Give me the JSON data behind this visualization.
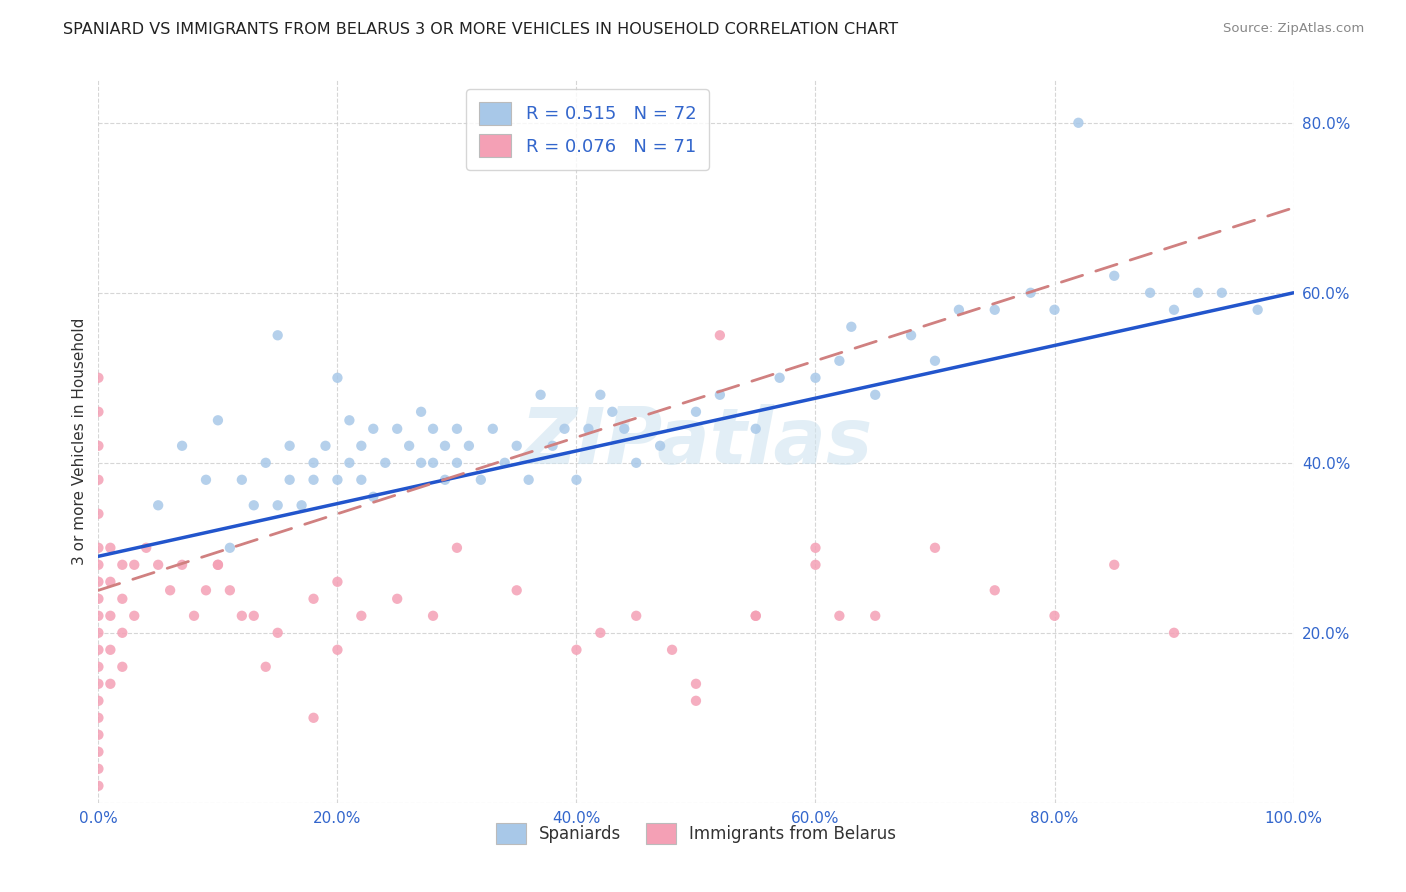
{
  "title": "SPANIARD VS IMMIGRANTS FROM BELARUS 3 OR MORE VEHICLES IN HOUSEHOLD CORRELATION CHART",
  "source": "Source: ZipAtlas.com",
  "ylabel": "3 or more Vehicles in Household",
  "legend_label1": "Spaniards",
  "legend_label2": "Immigrants from Belarus",
  "R1": 0.515,
  "N1": 72,
  "R2": 0.076,
  "N2": 71,
  "color1": "#a8c8e8",
  "color2": "#f4a0b5",
  "line_color1": "#2255cc",
  "line_color2": "#d08080",
  "watermark": "ZIPatlas",
  "xlim": [
    0.0,
    1.0
  ],
  "ylim": [
    0.0,
    0.85
  ],
  "xticks": [
    0.0,
    0.2,
    0.4,
    0.6,
    0.8,
    1.0
  ],
  "yticks": [
    0.0,
    0.2,
    0.4,
    0.6,
    0.8
  ],
  "xticklabels": [
    "0.0%",
    "20.0%",
    "40.0%",
    "60.0%",
    "80.0%",
    "100.0%"
  ],
  "yticklabels": [
    "",
    "20.0%",
    "40.0%",
    "60.0%",
    "80.0%"
  ],
  "spaniards_x": [
    0.05,
    0.07,
    0.09,
    0.1,
    0.11,
    0.12,
    0.13,
    0.14,
    0.15,
    0.15,
    0.16,
    0.16,
    0.17,
    0.18,
    0.18,
    0.19,
    0.2,
    0.2,
    0.21,
    0.21,
    0.22,
    0.22,
    0.23,
    0.23,
    0.24,
    0.25,
    0.26,
    0.27,
    0.27,
    0.28,
    0.28,
    0.29,
    0.29,
    0.3,
    0.3,
    0.31,
    0.32,
    0.33,
    0.34,
    0.35,
    0.36,
    0.37,
    0.38,
    0.39,
    0.4,
    0.41,
    0.42,
    0.43,
    0.44,
    0.45,
    0.47,
    0.5,
    0.52,
    0.55,
    0.57,
    0.6,
    0.62,
    0.63,
    0.65,
    0.68,
    0.7,
    0.72,
    0.75,
    0.78,
    0.8,
    0.82,
    0.85,
    0.88,
    0.9,
    0.92,
    0.94,
    0.97
  ],
  "spaniards_y": [
    0.35,
    0.42,
    0.38,
    0.45,
    0.3,
    0.38,
    0.35,
    0.4,
    0.35,
    0.55,
    0.38,
    0.42,
    0.35,
    0.4,
    0.38,
    0.42,
    0.38,
    0.5,
    0.4,
    0.45,
    0.38,
    0.42,
    0.36,
    0.44,
    0.4,
    0.44,
    0.42,
    0.4,
    0.46,
    0.4,
    0.44,
    0.42,
    0.38,
    0.44,
    0.4,
    0.42,
    0.38,
    0.44,
    0.4,
    0.42,
    0.38,
    0.48,
    0.42,
    0.44,
    0.38,
    0.44,
    0.48,
    0.46,
    0.44,
    0.4,
    0.42,
    0.46,
    0.48,
    0.44,
    0.5,
    0.5,
    0.52,
    0.56,
    0.48,
    0.55,
    0.52,
    0.58,
    0.58,
    0.6,
    0.58,
    0.8,
    0.62,
    0.6,
    0.58,
    0.6,
    0.6,
    0.58
  ],
  "belarus_x": [
    0.0,
    0.0,
    0.0,
    0.0,
    0.0,
    0.0,
    0.0,
    0.0,
    0.0,
    0.0,
    0.0,
    0.0,
    0.0,
    0.0,
    0.0,
    0.0,
    0.0,
    0.0,
    0.0,
    0.0,
    0.01,
    0.01,
    0.01,
    0.01,
    0.01,
    0.02,
    0.02,
    0.02,
    0.02,
    0.03,
    0.03,
    0.04,
    0.05,
    0.06,
    0.07,
    0.08,
    0.09,
    0.1,
    0.11,
    0.13,
    0.15,
    0.18,
    0.2,
    0.22,
    0.25,
    0.28,
    0.5,
    0.52,
    0.55,
    0.2,
    0.6,
    0.62,
    0.18,
    0.14,
    0.12,
    0.1,
    0.3,
    0.35,
    0.4,
    0.42,
    0.45,
    0.48,
    0.5,
    0.55,
    0.6,
    0.65,
    0.7,
    0.75,
    0.8,
    0.85,
    0.9
  ],
  "belarus_y": [
    0.5,
    0.46,
    0.42,
    0.38,
    0.34,
    0.3,
    0.28,
    0.26,
    0.24,
    0.22,
    0.2,
    0.18,
    0.16,
    0.14,
    0.12,
    0.1,
    0.08,
    0.06,
    0.04,
    0.02,
    0.3,
    0.26,
    0.22,
    0.18,
    0.14,
    0.28,
    0.24,
    0.2,
    0.16,
    0.28,
    0.22,
    0.3,
    0.28,
    0.25,
    0.28,
    0.22,
    0.25,
    0.28,
    0.25,
    0.22,
    0.2,
    0.24,
    0.26,
    0.22,
    0.24,
    0.22,
    0.14,
    0.55,
    0.22,
    0.18,
    0.3,
    0.22,
    0.1,
    0.16,
    0.22,
    0.28,
    0.3,
    0.25,
    0.18,
    0.2,
    0.22,
    0.18,
    0.12,
    0.22,
    0.28,
    0.22,
    0.3,
    0.25,
    0.22,
    0.28,
    0.2
  ],
  "line1_x0": 0.0,
  "line1_y0": 0.29,
  "line1_x1": 1.0,
  "line1_y1": 0.6,
  "line2_x0": 0.0,
  "line2_y0": 0.25,
  "line2_x1": 1.0,
  "line2_y1": 0.7
}
